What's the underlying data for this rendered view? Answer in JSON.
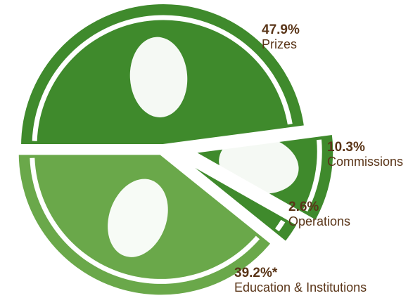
{
  "chart_data": {
    "type": "pie",
    "categories": [
      "Prizes",
      "Commissions",
      "Operations",
      "Education & Institutions"
    ],
    "values": [
      47.9,
      10.3,
      2.6,
      39.2
    ],
    "value_labels": [
      "47.9%",
      "10.3%",
      "2.6%",
      "39.2%*"
    ],
    "colors": [
      "#3f8a2c",
      "#3f8a2c",
      "#3f8a2c",
      "#6aa84a"
    ]
  }
}
